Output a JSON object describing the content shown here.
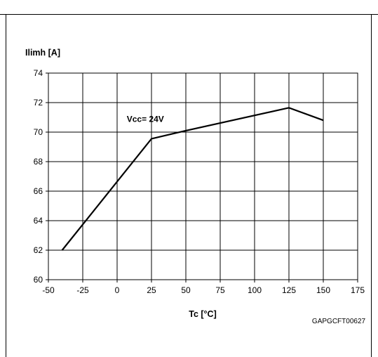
{
  "chart_data": {
    "type": "line",
    "title": "",
    "ylabel": "Ilimh [A]",
    "xlabel": "Tc [°C]",
    "xlim": [
      -50,
      175
    ],
    "ylim": [
      60,
      74
    ],
    "x_ticks": [
      -50,
      -25,
      0,
      25,
      50,
      75,
      100,
      125,
      150,
      175
    ],
    "y_ticks": [
      60,
      62,
      64,
      66,
      68,
      70,
      72,
      74
    ],
    "grid": true,
    "legend": "none",
    "series": [
      {
        "x": [
          -40,
          25,
          50,
          125,
          150
        ],
        "y": [
          62.0,
          69.55,
          70.1,
          71.65,
          70.8
        ],
        "color": "#000000"
      }
    ],
    "annotations": [
      {
        "text": "Vcc= 24V",
        "x": 7,
        "y": 70.7
      }
    ],
    "figure_code": "GAPGCFT00627"
  }
}
